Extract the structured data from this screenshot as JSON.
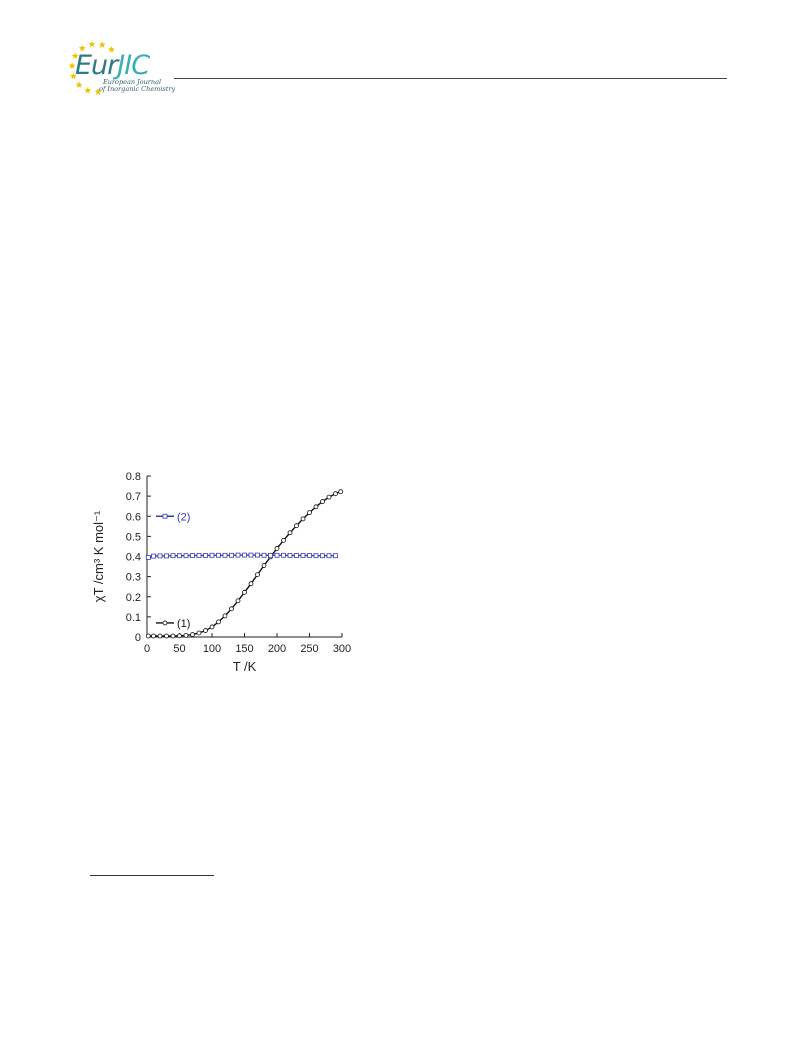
{
  "header": {
    "logo_word_1": "Eur",
    "logo_word_2": "JIC",
    "logo_sub_1": "European Journal",
    "logo_sub_2": "of Inorganic Chemistry",
    "logo_star_color": "#f2c200",
    "logo_teal_color": "#2f7b84"
  },
  "chart_data": {
    "type": "line",
    "xlabel": "T /K",
    "ylabel": "χT /cm³ K mol⁻¹",
    "xlim": [
      0,
      300
    ],
    "ylim": [
      0,
      0.8
    ],
    "xticks": [
      0,
      50,
      100,
      150,
      200,
      250,
      300
    ],
    "yticks": [
      0,
      0.1,
      0.2,
      0.3,
      0.4,
      0.5,
      0.6,
      0.7,
      0.8
    ],
    "xtick_labels": [
      "0",
      "50",
      "100",
      "150",
      "200",
      "250",
      "300"
    ],
    "ytick_labels": [
      "0",
      "0.1",
      "0.2",
      "0.3",
      "0.4",
      "0.5",
      "0.6",
      "0.7",
      "0.8"
    ],
    "grid": false,
    "series": [
      {
        "name": "(1)",
        "color": "#111111",
        "marker": "circle",
        "x": [
          2,
          10,
          20,
          30,
          40,
          50,
          60,
          70,
          80,
          90,
          100,
          110,
          120,
          130,
          140,
          150,
          160,
          170,
          180,
          190,
          200,
          210,
          220,
          230,
          240,
          250,
          260,
          270,
          280,
          290,
          298
        ],
        "y": [
          0.005,
          0.005,
          0.005,
          0.005,
          0.005,
          0.006,
          0.008,
          0.012,
          0.02,
          0.032,
          0.05,
          0.075,
          0.105,
          0.14,
          0.18,
          0.222,
          0.265,
          0.31,
          0.355,
          0.398,
          0.44,
          0.48,
          0.518,
          0.553,
          0.587,
          0.618,
          0.647,
          0.673,
          0.695,
          0.712,
          0.722
        ]
      },
      {
        "name": "(2)",
        "color": "#3a3ab0",
        "marker": "square",
        "x": [
          2,
          10,
          20,
          30,
          40,
          50,
          60,
          70,
          80,
          90,
          100,
          110,
          120,
          130,
          140,
          150,
          160,
          170,
          180,
          190,
          200,
          210,
          220,
          230,
          240,
          250,
          260,
          270,
          280,
          290
        ],
        "y": [
          0.395,
          0.402,
          0.403,
          0.403,
          0.404,
          0.404,
          0.404,
          0.405,
          0.405,
          0.405,
          0.406,
          0.406,
          0.406,
          0.406,
          0.407,
          0.407,
          0.407,
          0.407,
          0.406,
          0.406,
          0.406,
          0.406,
          0.405,
          0.405,
          0.405,
          0.405,
          0.404,
          0.404,
          0.404,
          0.404
        ]
      }
    ],
    "legend": [
      {
        "label": "(2)",
        "series": 1,
        "at_y": 0.6
      },
      {
        "label": "(1)",
        "series": 0,
        "at_y": 0.07
      }
    ]
  }
}
